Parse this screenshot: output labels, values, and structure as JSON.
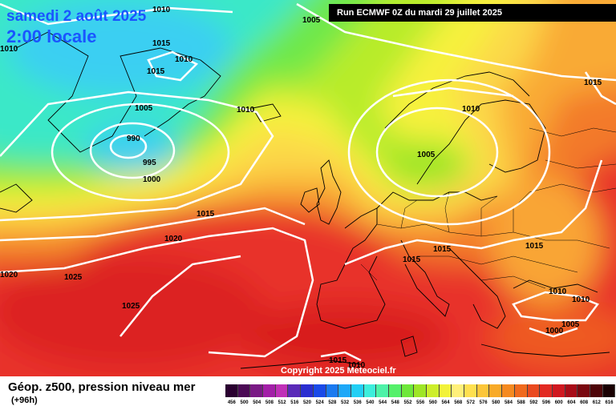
{
  "header": {
    "date": "samedi 2 août 2025",
    "local_time": "2:00 locale",
    "run_info": "Run ECMWF 0Z du mardi 29 juillet 2025"
  },
  "copyright": "Copyright 2025 Meteociel.fr",
  "legend": {
    "title": "Géop. z500, pression niveau mer",
    "lead_time": "(+96h)",
    "ticks": [
      "456",
      "500",
      "504",
      "508",
      "512",
      "516",
      "520",
      "524",
      "528",
      "532",
      "536",
      "540",
      "544",
      "548",
      "552",
      "556",
      "560",
      "564",
      "568",
      "572",
      "576",
      "580",
      "584",
      "588",
      "592",
      "596",
      "600",
      "604",
      "608",
      "612",
      "616"
    ],
    "colors": [
      "#2a0030",
      "#4b0a55",
      "#7a1a85",
      "#a31fa8",
      "#c030b8",
      "#5a2ab8",
      "#2a2ed0",
      "#1a4ae8",
      "#1a7af0",
      "#1ea8f8",
      "#22cff5",
      "#3deedc",
      "#4ef2a8",
      "#55f06a",
      "#6ee83a",
      "#9ee626",
      "#cdee2a",
      "#f2f23a",
      "#fff07a",
      "#ffe050",
      "#fcc63a",
      "#f8aa28",
      "#f58a20",
      "#f06a1e",
      "#ea4a20",
      "#e22a22",
      "#d01820",
      "#a80c18",
      "#7a0810",
      "#4e0408",
      "#1a0002"
    ]
  },
  "pressure_labels": [
    "1010",
    "1005",
    "1015",
    "1010",
    "1015",
    "1010",
    "1005",
    "1010",
    "990",
    "995",
    "1000",
    "1010",
    "1005",
    "1015",
    "1020",
    "1015",
    "1015",
    "1015",
    "1020",
    "1025",
    "1025",
    "1010",
    "1010",
    "1005",
    "1000",
    "1015",
    "1010"
  ]
}
